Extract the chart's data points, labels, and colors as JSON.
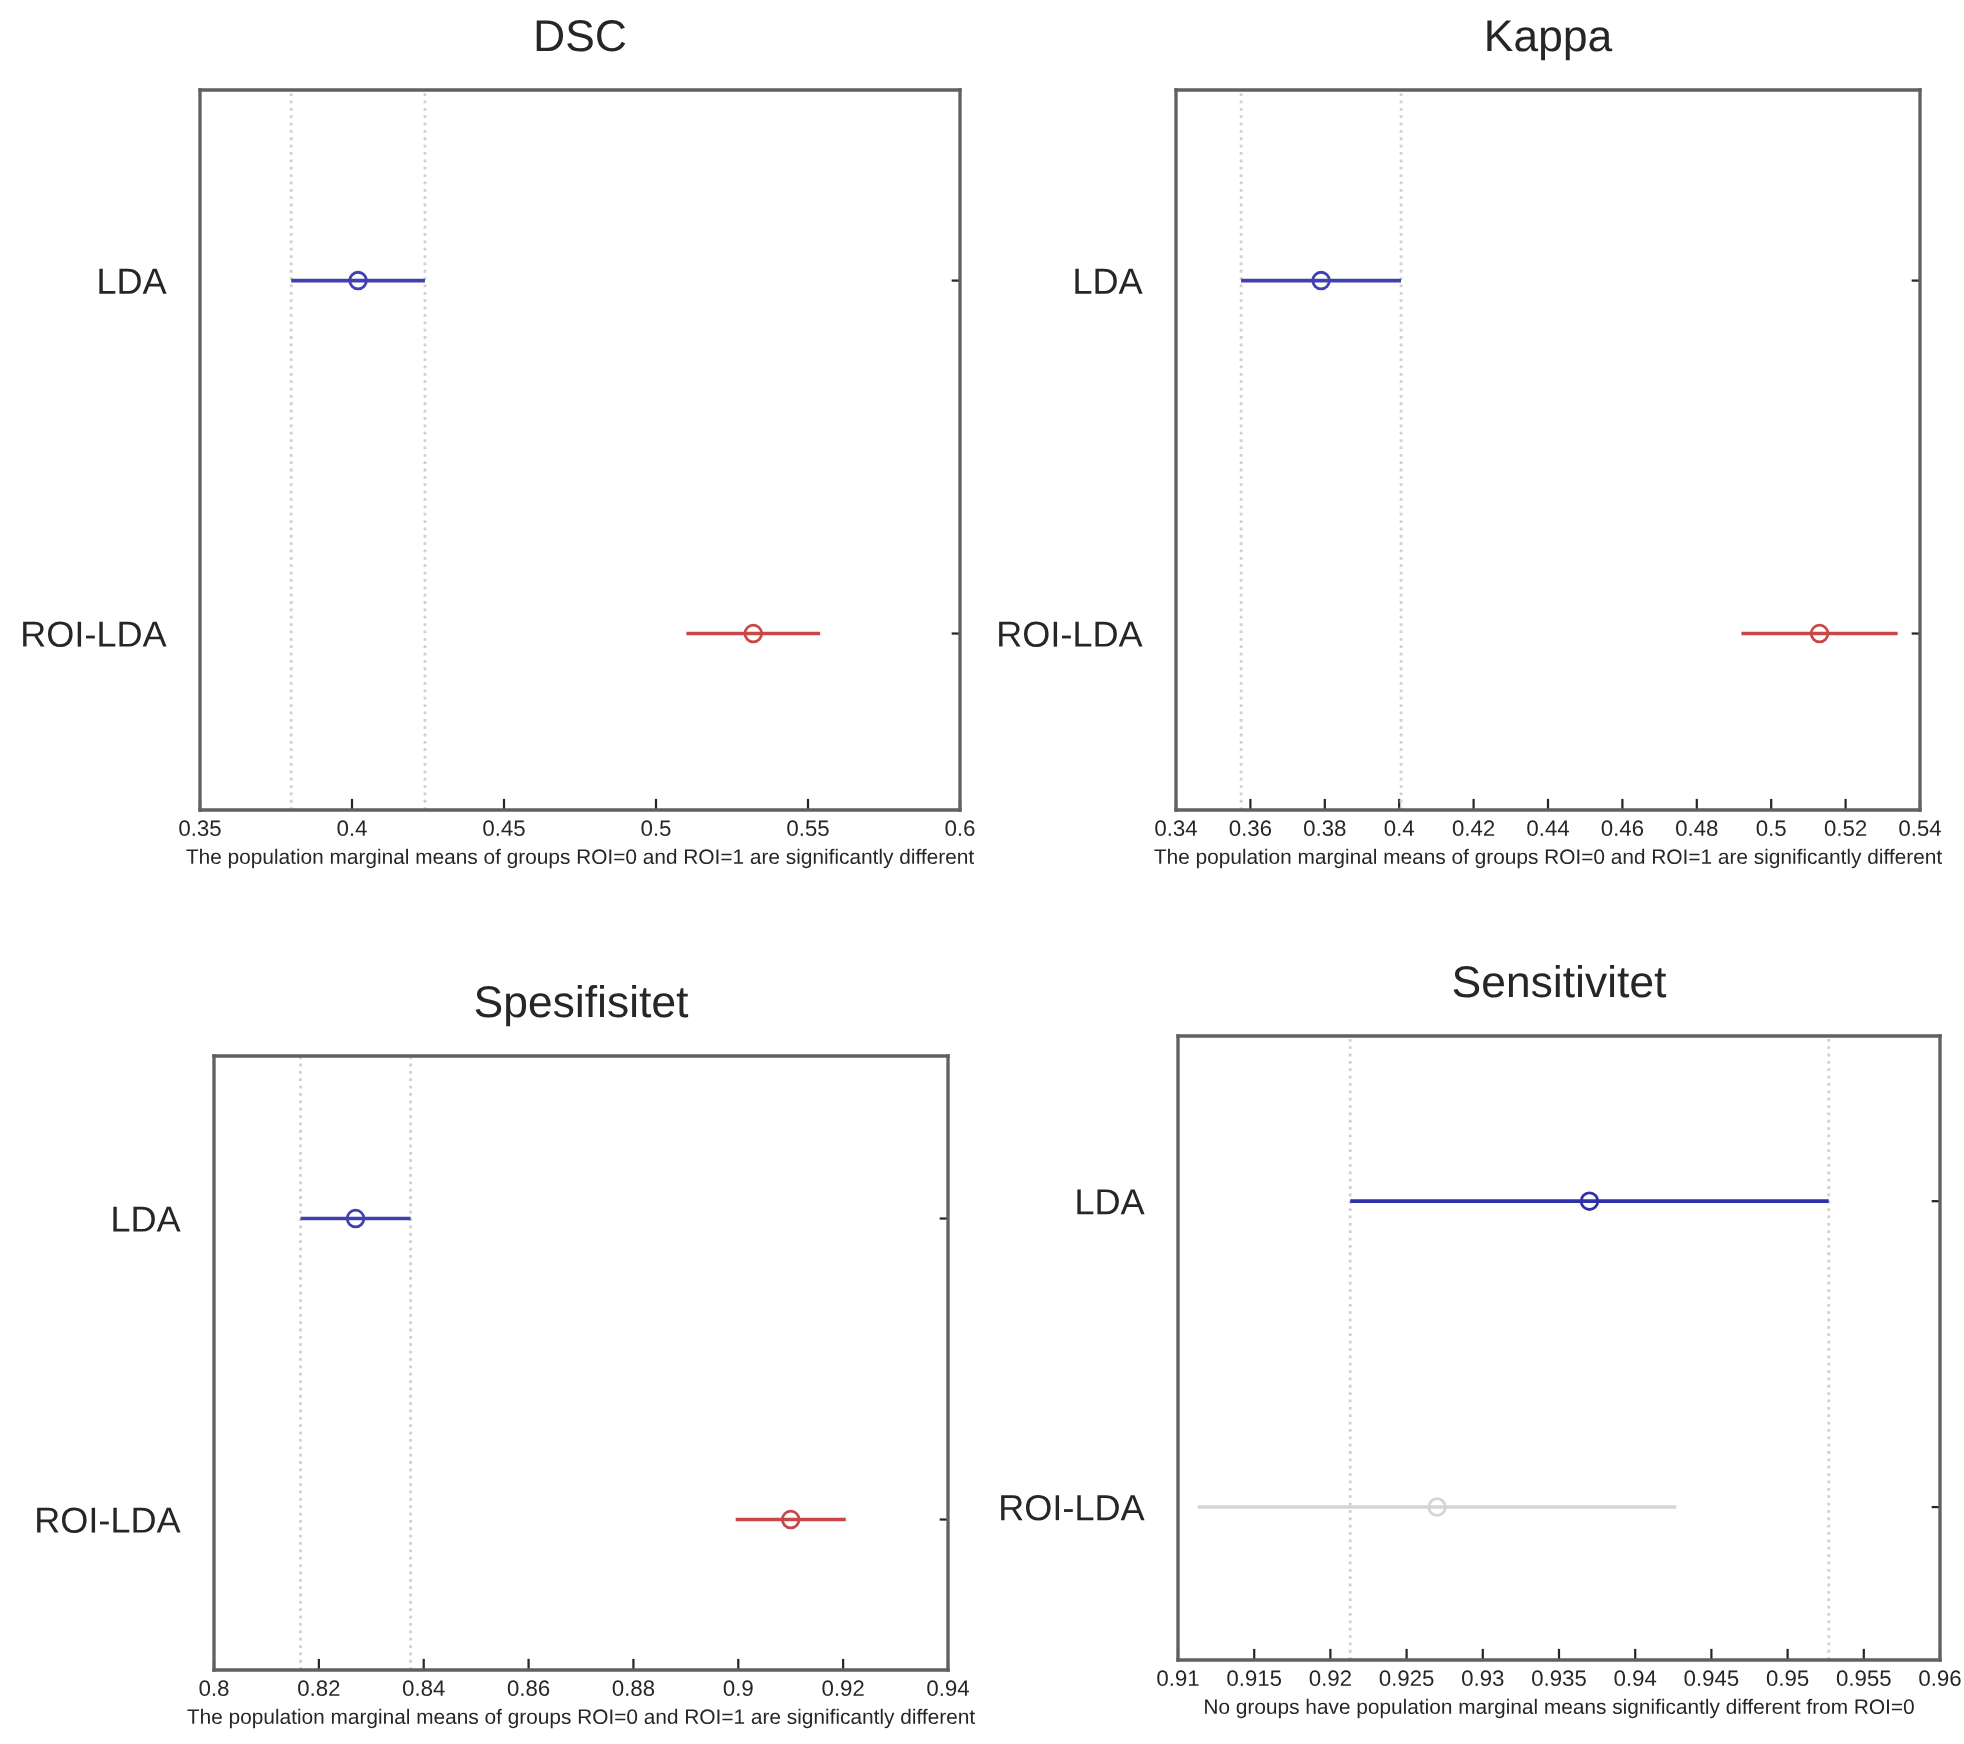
{
  "chart_data": [
    {
      "type": "scatter",
      "orientation": "horizontal",
      "title": "DSC",
      "xlabel": "The population marginal means of groups ROI=0 and ROI=1 are significantly different",
      "categories": [
        "LDA",
        "ROI-LDA"
      ],
      "values": [
        0.402,
        0.532
      ],
      "errors": [
        0.022,
        0.022
      ],
      "colors": [
        "#4040b0",
        "#c84848"
      ],
      "marker": "circle",
      "xlim": [
        0.35,
        0.6
      ],
      "xticks": [
        0.35,
        0.4,
        0.45,
        0.5,
        0.55,
        0.6
      ],
      "ref_lines": [
        {
          "axis": "x",
          "value": 0.38,
          "color": "#d0d0d0",
          "line_style": "dotted"
        },
        {
          "axis": "x",
          "value": 0.424,
          "color": "#d0d0d0",
          "line_style": "dotted"
        }
      ]
    },
    {
      "type": "scatter",
      "orientation": "horizontal",
      "title": "Kappa",
      "xlabel": "The population marginal means of groups ROI=0 and ROI=1 are significantly different",
      "categories": [
        "LDA",
        "ROI-LDA"
      ],
      "values": [
        0.379,
        0.513
      ],
      "errors": [
        0.0215,
        0.021
      ],
      "colors": [
        "#4040b0",
        "#c84848"
      ],
      "marker": "circle",
      "xlim": [
        0.34,
        0.54
      ],
      "xticks": [
        0.34,
        0.36,
        0.38,
        0.4,
        0.42,
        0.44,
        0.46,
        0.48,
        0.5,
        0.52,
        0.54
      ],
      "ref_lines": [
        {
          "axis": "x",
          "value": 0.3575,
          "color": "#d0d0d0",
          "line_style": "dotted"
        },
        {
          "axis": "x",
          "value": 0.4005,
          "color": "#d0d0d0",
          "line_style": "dotted"
        }
      ]
    },
    {
      "type": "scatter",
      "orientation": "horizontal",
      "title": "Spesifisitet",
      "xlabel": "The population marginal means of groups ROI=0 and ROI=1 are significantly different",
      "categories": [
        "LDA",
        "ROI-LDA"
      ],
      "values": [
        0.827,
        0.91
      ],
      "errors": [
        0.0105,
        0.0105
      ],
      "colors": [
        "#4040b0",
        "#c84848"
      ],
      "marker": "circle",
      "xlim": [
        0.8,
        0.94
      ],
      "xticks": [
        0.8,
        0.82,
        0.84,
        0.86,
        0.88,
        0.9,
        0.92,
        0.94
      ],
      "ref_lines": [
        {
          "axis": "x",
          "value": 0.8165,
          "color": "#d0d0d0",
          "line_style": "dotted"
        },
        {
          "axis": "x",
          "value": 0.8375,
          "color": "#d0d0d0",
          "line_style": "dotted"
        }
      ]
    },
    {
      "type": "scatter",
      "orientation": "horizontal",
      "title": "Sensitivitet",
      "xlabel": "No groups have population marginal means significantly different from ROI=0",
      "categories": [
        "LDA",
        "ROI-LDA"
      ],
      "values": [
        0.937,
        0.927
      ],
      "errors": [
        0.0157,
        0.0157
      ],
      "colors": [
        "#3030a8",
        "#d4d4d4"
      ],
      "marker": "circle",
      "xlim": [
        0.91,
        0.96
      ],
      "xticks": [
        0.91,
        0.915,
        0.92,
        0.925,
        0.93,
        0.935,
        0.94,
        0.945,
        0.95,
        0.955,
        0.96
      ],
      "ref_lines": [
        {
          "axis": "x",
          "value": 0.9213,
          "color": "#d0d0d0",
          "line_style": "dotted"
        },
        {
          "axis": "x",
          "value": 0.9527,
          "color": "#d0d0d0",
          "line_style": "dotted"
        }
      ]
    }
  ]
}
